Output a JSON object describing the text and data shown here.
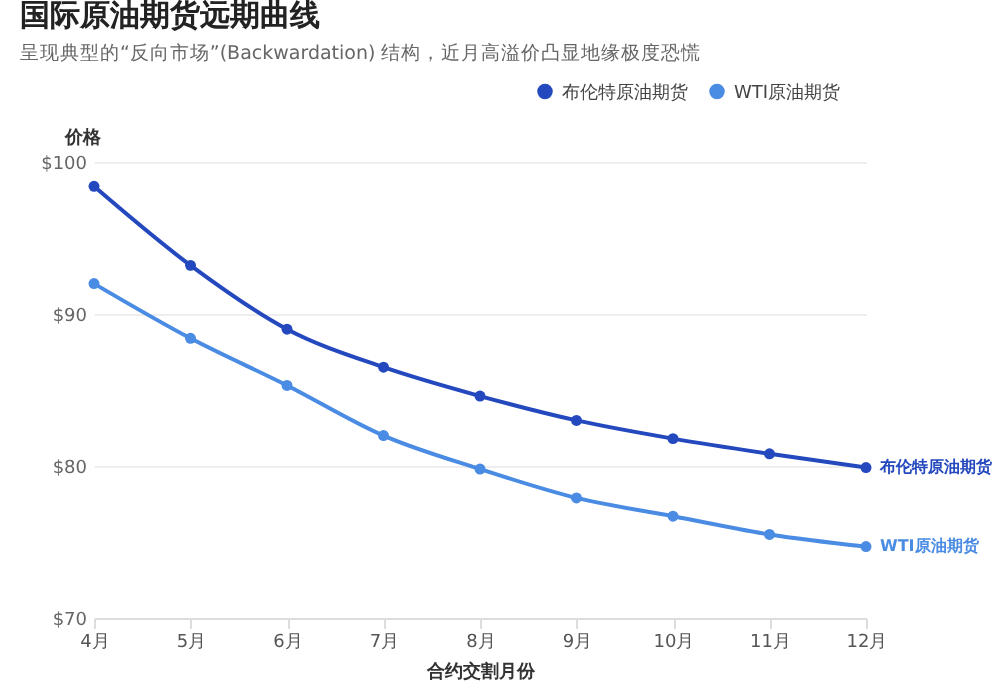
{
  "chart_data": {
    "type": "line",
    "title": "国际原油期货远期曲线",
    "subtitle": "呈现典型的“反向市场”(Backwardation) 结构，近月高溢价凸显地缘极度恐慌",
    "xlabel": "合约交割月份",
    "ylabel": "价格",
    "categories": [
      "4月",
      "5月",
      "6月",
      "7月",
      "8月",
      "9月",
      "10月",
      "11月",
      "12月"
    ],
    "series": [
      {
        "name": "布伦特原油期货",
        "color": "#2448bd",
        "values": [
          98.4,
          93.2,
          89.0,
          86.5,
          84.6,
          83.0,
          81.8,
          80.8,
          79.9
        ]
      },
      {
        "name": "WTI原油期货",
        "color": "#4a8be3",
        "values": [
          92.0,
          88.4,
          85.3,
          82.0,
          79.8,
          77.9,
          76.7,
          75.5,
          74.7
        ]
      }
    ],
    "ylim": [
      70,
      100
    ],
    "yticks": [
      {
        "value": 70,
        "label": "$70"
      },
      {
        "value": 80,
        "label": "$80"
      },
      {
        "value": 90,
        "label": "$90"
      },
      {
        "value": 100,
        "label": "$100"
      }
    ],
    "grid": "y",
    "legend": "top right",
    "marker": "circle",
    "line_style": "solid"
  }
}
